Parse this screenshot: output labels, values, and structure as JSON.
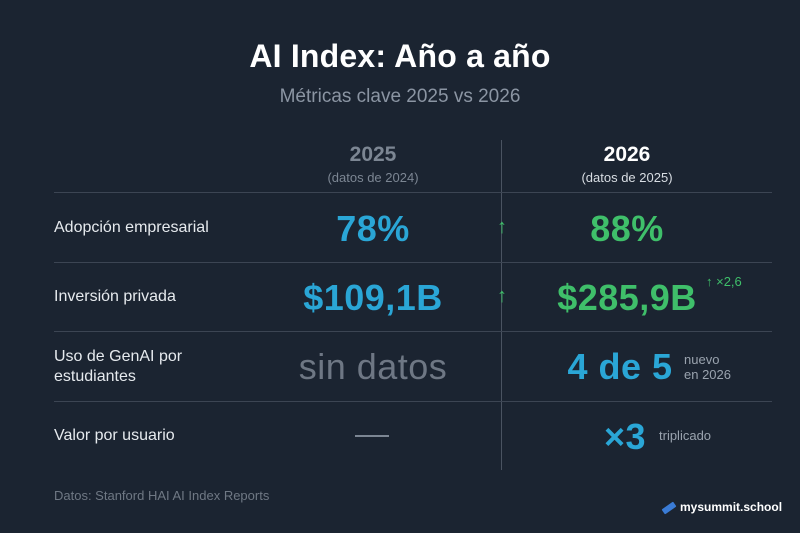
{
  "header": {
    "title": "AI Index: Año a año",
    "subtitle": "Métricas clave 2025 vs 2026"
  },
  "columns": [
    {
      "year": "2025",
      "note": "(datos de 2024)"
    },
    {
      "year": "2026",
      "note": "(datos de 2025)"
    }
  ],
  "rows": [
    {
      "label": "Adopción empresarial",
      "v2025": "78%",
      "arrow": "↑",
      "v2026": "88%",
      "extra": ""
    },
    {
      "label": "Inversión privada",
      "v2025": "$109,1B",
      "arrow": "↑",
      "v2026": "$285,9B",
      "extra": "↑ ×2,6"
    },
    {
      "label_line1": "Uso de GenAI por",
      "label_line2": "estudiantes",
      "v2025": "sin datos",
      "v2026": "4 de 5",
      "extra_line1": "nuevo",
      "extra_line2": "en 2026"
    },
    {
      "label": "Valor por usuario",
      "v2026": "×3",
      "extra": "triplicado"
    }
  ],
  "footer": {
    "source": "Datos: Stanford HAI AI Index Reports"
  },
  "brand": {
    "name": "mysummit.school",
    "icon": "pen-icon"
  },
  "colors": {
    "background": "#1b2431",
    "blue": "#2aa6d6",
    "green": "#3fbf6a",
    "muted": "#7c8693"
  }
}
